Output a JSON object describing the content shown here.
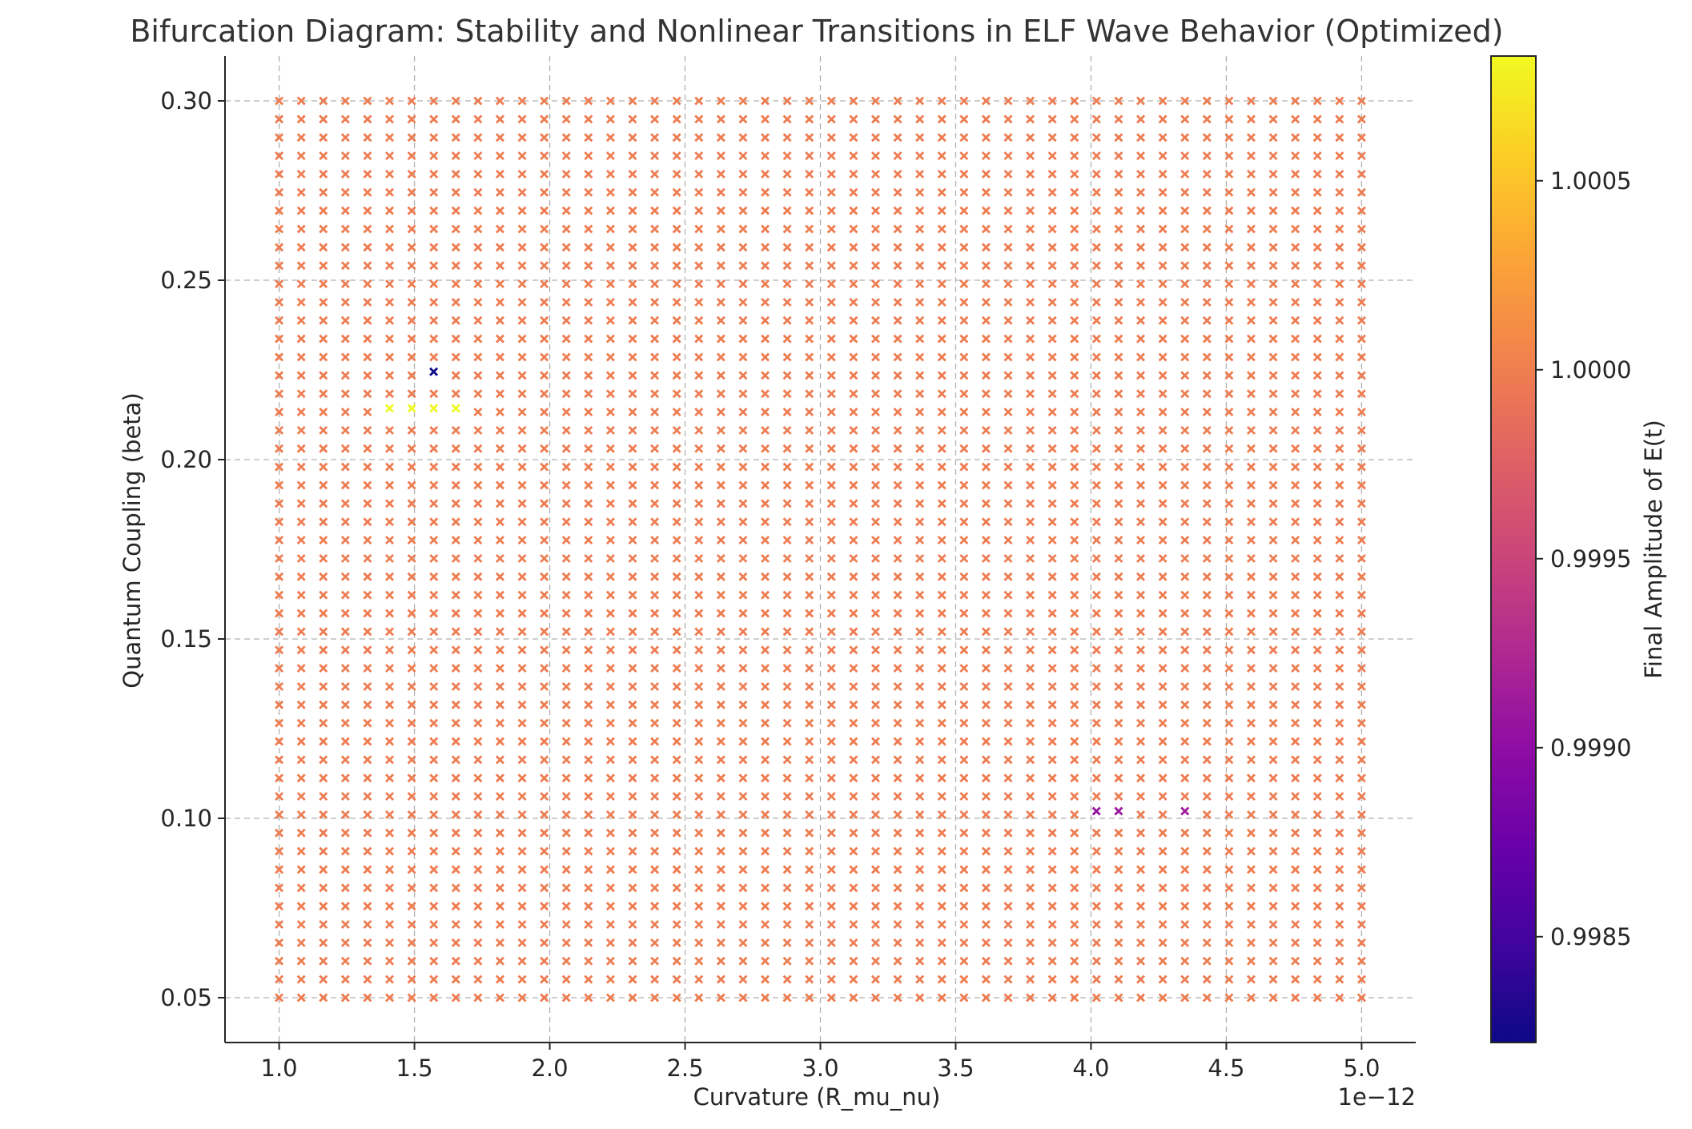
{
  "chart_data": {
    "type": "scatter",
    "title": "Bifurcation Diagram: Stability and Nonlinear Transitions in ELF Wave Behavior (Optimized)",
    "xlabel": "Curvature (R_mu_nu)",
    "ylabel": "Quantum Coupling (beta)",
    "x_offset_label": "1e−12",
    "colorbar_label": "Final Amplitude of E(t)",
    "marker": "x",
    "grid": true,
    "xlim": [
      0.8,
      5.2
    ],
    "ylim": [
      0.0375,
      0.3125
    ],
    "x_ticks": [
      1.0,
      1.5,
      2.0,
      2.5,
      3.0,
      3.5,
      4.0,
      4.5,
      5.0
    ],
    "x_tick_labels": [
      "1.0",
      "1.5",
      "2.0",
      "2.5",
      "3.0",
      "3.5",
      "4.0",
      "4.5",
      "5.0"
    ],
    "y_ticks": [
      0.05,
      0.1,
      0.15,
      0.2,
      0.25,
      0.3
    ],
    "y_tick_labels": [
      "0.05",
      "0.10",
      "0.15",
      "0.20",
      "0.25",
      "0.30"
    ],
    "colorbar_ticks": [
      0.9985,
      0.999,
      0.9995,
      1.0,
      1.0005
    ],
    "colorbar_tick_labels": [
      "0.9985",
      "0.9990",
      "0.9995",
      "1.0000",
      "1.0005"
    ],
    "colorbar_range": [
      0.99822,
      1.00083
    ],
    "colormap": "plasma",
    "grid_sampling": {
      "x_min": 1.0,
      "x_max": 5.0,
      "x_count": 50,
      "y_min": 0.05,
      "y_max": 0.3,
      "y_count": 50,
      "base_value": 0.99998
    },
    "outliers": [
      {
        "x": 1.571,
        "y": 0.2245,
        "value": 0.99822
      },
      {
        "x": 1.408,
        "y": 0.2143,
        "value": 1.00083
      },
      {
        "x": 1.49,
        "y": 0.2143,
        "value": 1.00083
      },
      {
        "x": 1.571,
        "y": 0.2143,
        "value": 1.00083
      },
      {
        "x": 1.653,
        "y": 0.2143,
        "value": 1.00083
      },
      {
        "x": 4.02,
        "y": 0.102,
        "value": 0.99905
      },
      {
        "x": 4.102,
        "y": 0.102,
        "value": 0.9991
      },
      {
        "x": 4.347,
        "y": 0.102,
        "value": 0.99912
      }
    ]
  }
}
